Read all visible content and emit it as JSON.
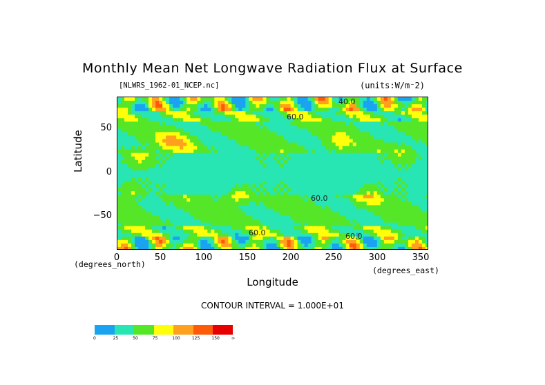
{
  "chart_data": {
    "type": "heatmap",
    "title": "Monthly Mean Net Longwave Radiation Flux at Surface",
    "subtitle": "[NLWRS_1962-01_NCEP.nc]",
    "units": "(units:W/m^2)",
    "xlabel": "Longitude",
    "ylabel": "Latitude",
    "x_unit": "(degrees_east)",
    "y_unit": "(degrees_north)",
    "xlim": [
      0,
      360
    ],
    "ylim": [
      -90,
      90
    ],
    "x_ticks": [
      "0",
      "50",
      "100",
      "150",
      "200",
      "250",
      "300",
      "350"
    ],
    "y_ticks": [
      "50",
      "0",
      "−50"
    ],
    "contour_interval": "CONTOUR INTERVAL = 1.000E+01",
    "contour_labels": [
      "40.0",
      "60.0",
      "60.0",
      "60.0",
      "60.0"
    ],
    "colorbar": {
      "labels": [
        "0",
        "25",
        "50",
        "75",
        "100",
        "125",
        "150",
        "∞"
      ],
      "colors": [
        "#1aa3f0",
        "#28e6b4",
        "#55e628",
        "#ffff0a",
        "#ffa01e",
        "#ff5a0a",
        "#e60000"
      ]
    }
  }
}
